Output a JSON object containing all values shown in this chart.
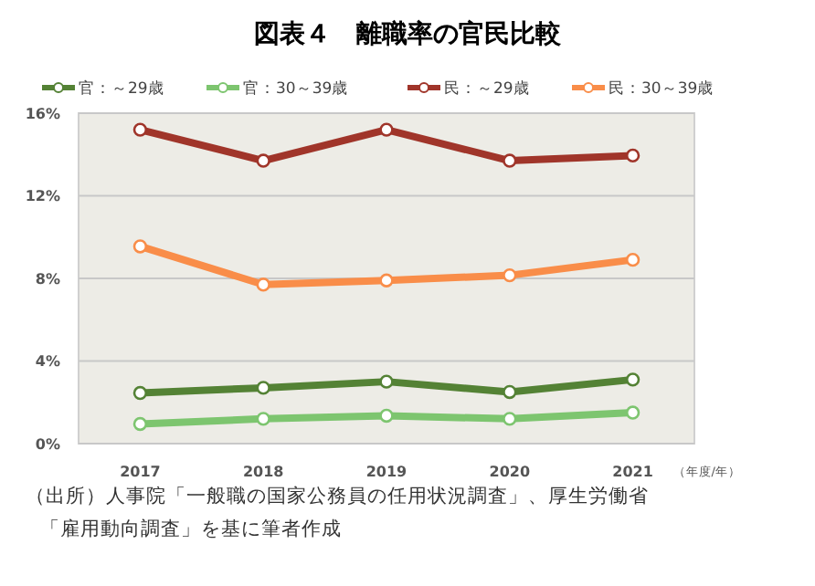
{
  "chart_data": {
    "type": "line",
    "title": "図表４　離職率の官民比較",
    "xlabel": "（年度/年）",
    "categories": [
      "2017",
      "2018",
      "2019",
      "2020",
      "2021"
    ],
    "series": [
      {
        "name": "官：～29歳",
        "color": "#548235",
        "values": [
          2.45,
          2.7,
          3.0,
          2.5,
          3.1
        ]
      },
      {
        "name": "官：30～39歳",
        "color": "#7dc56f",
        "values": [
          0.95,
          1.2,
          1.35,
          1.2,
          1.5
        ]
      },
      {
        "name": "民：～29歳",
        "color": "#a0352a",
        "values": [
          15.2,
          13.7,
          15.2,
          13.7,
          13.95
        ]
      },
      {
        "name": "民：30～39歳",
        "color": "#f98d49",
        "values": [
          9.55,
          7.7,
          7.9,
          8.15,
          8.9
        ]
      }
    ],
    "ylim": [
      0,
      16
    ],
    "yticks": [
      {
        "value": 0,
        "label": "0%"
      },
      {
        "value": 4,
        "label": "4%"
      },
      {
        "value": 8,
        "label": "8%"
      },
      {
        "value": 12,
        "label": "12%"
      },
      {
        "value": 16,
        "label": "16%"
      }
    ],
    "grid": "y",
    "legend": "top",
    "marker": "circle",
    "line_style": "solid",
    "annotations": [
      "（出所）人事院「一般職の国家公務員の任用状況調査」、厚生労働省",
      "「雇用動向調査」を基に筆者作成"
    ]
  }
}
